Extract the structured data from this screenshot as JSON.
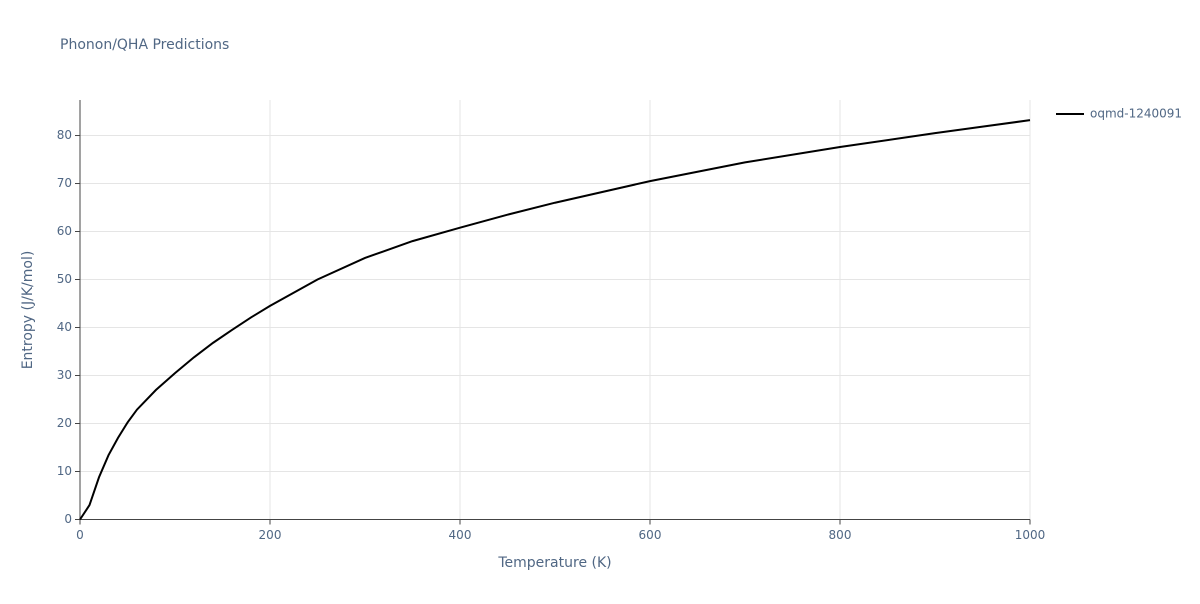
{
  "chart_data": {
    "type": "line",
    "title": "Phonon/QHA Predictions",
    "x_label": "Temperature (K)",
    "y_label": "Entropy (J/K/mol)",
    "x": [
      0,
      10,
      20,
      30,
      40,
      50,
      60,
      80,
      100,
      120,
      140,
      160,
      180,
      200,
      250,
      300,
      350,
      400,
      450,
      500,
      600,
      700,
      800,
      900,
      1000
    ],
    "series": [
      {
        "name": "oqmd-1240091",
        "color": "#000000",
        "values": [
          0,
          3,
          8.8,
          13.4,
          17,
          20.2,
          22.9,
          27,
          30.5,
          33.8,
          36.8,
          39.5,
          42.1,
          44.5,
          50,
          54.5,
          58,
          60.8,
          63.5,
          66,
          70.5,
          74.4,
          77.6,
          80.5,
          83.2
        ]
      }
    ],
    "xlim": [
      0,
      1000
    ],
    "xticks": [
      0,
      200,
      400,
      600,
      800,
      1000
    ],
    "ylim": [
      0,
      87.4
    ],
    "yticks": [
      0,
      10,
      20,
      30,
      40,
      50,
      60,
      70,
      80
    ],
    "grid": true,
    "legend": "right"
  }
}
